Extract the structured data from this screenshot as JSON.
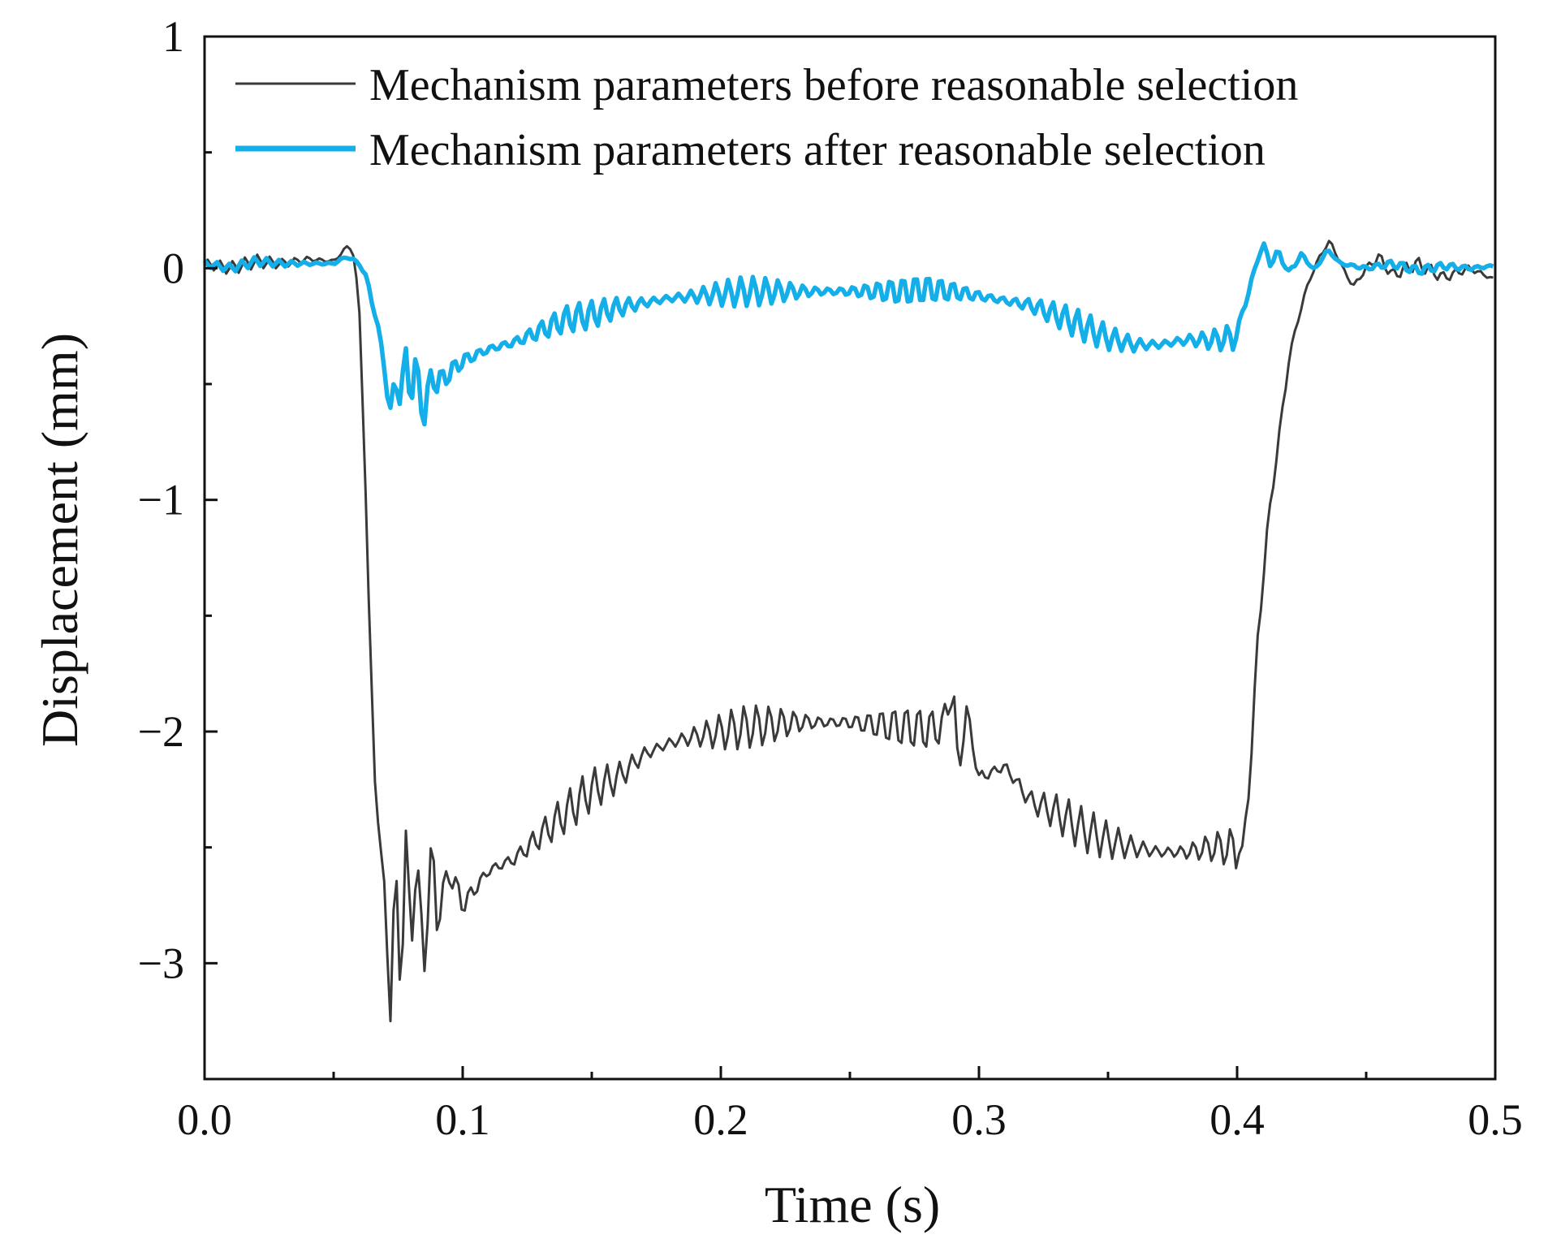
{
  "chart_data": {
    "type": "line",
    "title": "",
    "xlabel": "Time (s)",
    "ylabel": "Displacement (mm)",
    "xlim": [
      0.0,
      0.5
    ],
    "ylim": [
      -3.5,
      1.0
    ],
    "x_ticks": [
      0.0,
      0.1,
      0.2,
      0.3,
      0.4,
      0.5
    ],
    "x_tick_labels": [
      "0.0",
      "0.1",
      "0.2",
      "0.3",
      "0.4",
      "0.5"
    ],
    "y_ticks": [
      1,
      0,
      -1,
      -2,
      -3
    ],
    "y_tick_labels": [
      "1",
      "0",
      "−1",
      "−2",
      "−3"
    ],
    "legend_position": "top-right",
    "grid": false,
    "series": [
      {
        "name": "Mechanism parameters before reasonable selection",
        "color": "#3a3a3a",
        "points": [
          [
            0.0,
            0.02
          ],
          [
            0.01,
            0.0
          ],
          [
            0.02,
            0.03
          ],
          [
            0.03,
            0.02
          ],
          [
            0.04,
            0.04
          ],
          [
            0.05,
            0.03
          ],
          [
            0.056,
            0.1
          ],
          [
            0.058,
            0.05
          ],
          [
            0.06,
            -0.2
          ],
          [
            0.062,
            -0.8
          ],
          [
            0.064,
            -1.6
          ],
          [
            0.066,
            -2.2
          ],
          [
            0.068,
            -2.5
          ],
          [
            0.07,
            -2.7
          ],
          [
            0.072,
            -3.2
          ],
          [
            0.074,
            -2.6
          ],
          [
            0.076,
            -3.1
          ],
          [
            0.078,
            -2.5
          ],
          [
            0.08,
            -2.9
          ],
          [
            0.082,
            -2.55
          ],
          [
            0.085,
            -3.0
          ],
          [
            0.088,
            -2.5
          ],
          [
            0.09,
            -2.8
          ],
          [
            0.095,
            -2.6
          ],
          [
            0.1,
            -2.75
          ],
          [
            0.11,
            -2.6
          ],
          [
            0.12,
            -2.55
          ],
          [
            0.13,
            -2.45
          ],
          [
            0.14,
            -2.35
          ],
          [
            0.15,
            -2.25
          ],
          [
            0.16,
            -2.2
          ],
          [
            0.17,
            -2.1
          ],
          [
            0.18,
            -2.05
          ],
          [
            0.19,
            -2.02
          ],
          [
            0.2,
            -2.0
          ],
          [
            0.21,
            -1.98
          ],
          [
            0.22,
            -1.97
          ],
          [
            0.23,
            -1.96
          ],
          [
            0.24,
            -1.96
          ],
          [
            0.25,
            -1.96
          ],
          [
            0.26,
            -1.97
          ],
          [
            0.27,
            -1.98
          ],
          [
            0.28,
            -1.99
          ],
          [
            0.286,
            -1.98
          ],
          [
            0.29,
            -1.8
          ],
          [
            0.292,
            -2.2
          ],
          [
            0.295,
            -1.9
          ],
          [
            0.3,
            -2.2
          ],
          [
            0.31,
            -2.15
          ],
          [
            0.32,
            -2.3
          ],
          [
            0.33,
            -2.35
          ],
          [
            0.34,
            -2.42
          ],
          [
            0.35,
            -2.47
          ],
          [
            0.36,
            -2.5
          ],
          [
            0.37,
            -2.52
          ],
          [
            0.38,
            -2.52
          ],
          [
            0.39,
            -2.5
          ],
          [
            0.398,
            -2.5
          ],
          [
            0.402,
            -2.52
          ],
          [
            0.405,
            -2.2
          ],
          [
            0.408,
            -1.6
          ],
          [
            0.412,
            -1.1
          ],
          [
            0.416,
            -0.75
          ],
          [
            0.42,
            -0.4
          ],
          [
            0.424,
            -0.2
          ],
          [
            0.428,
            -0.05
          ],
          [
            0.432,
            0.05
          ],
          [
            0.436,
            0.12
          ],
          [
            0.44,
            0.02
          ],
          [
            0.445,
            -0.08
          ],
          [
            0.45,
            0.0
          ],
          [
            0.455,
            0.05
          ],
          [
            0.46,
            -0.03
          ],
          [
            0.47,
            0.02
          ],
          [
            0.48,
            -0.04
          ],
          [
            0.49,
            0.0
          ],
          [
            0.5,
            -0.05
          ]
        ]
      },
      {
        "name": "Mechanism parameters after reasonable selection",
        "color": "#14aee8",
        "points": [
          [
            0.0,
            0.02
          ],
          [
            0.01,
            0.0
          ],
          [
            0.02,
            0.03
          ],
          [
            0.03,
            0.02
          ],
          [
            0.04,
            0.02
          ],
          [
            0.05,
            0.02
          ],
          [
            0.055,
            0.05
          ],
          [
            0.06,
            0.02
          ],
          [
            0.063,
            -0.05
          ],
          [
            0.066,
            -0.2
          ],
          [
            0.068,
            -0.3
          ],
          [
            0.07,
            -0.45
          ],
          [
            0.072,
            -0.65
          ],
          [
            0.074,
            -0.45
          ],
          [
            0.076,
            -0.58
          ],
          [
            0.078,
            -0.38
          ],
          [
            0.08,
            -0.55
          ],
          [
            0.082,
            -0.42
          ],
          [
            0.085,
            -0.65
          ],
          [
            0.088,
            -0.45
          ],
          [
            0.09,
            -0.5
          ],
          [
            0.095,
            -0.45
          ],
          [
            0.1,
            -0.4
          ],
          [
            0.11,
            -0.35
          ],
          [
            0.12,
            -0.32
          ],
          [
            0.13,
            -0.27
          ],
          [
            0.14,
            -0.22
          ],
          [
            0.15,
            -0.2
          ],
          [
            0.16,
            -0.17
          ],
          [
            0.17,
            -0.15
          ],
          [
            0.18,
            -0.13
          ],
          [
            0.19,
            -0.12
          ],
          [
            0.2,
            -0.11
          ],
          [
            0.21,
            -0.1
          ],
          [
            0.22,
            -0.1
          ],
          [
            0.23,
            -0.1
          ],
          [
            0.24,
            -0.1
          ],
          [
            0.25,
            -0.1
          ],
          [
            0.26,
            -0.1
          ],
          [
            0.27,
            -0.1
          ],
          [
            0.28,
            -0.09
          ],
          [
            0.29,
            -0.1
          ],
          [
            0.3,
            -0.12
          ],
          [
            0.31,
            -0.14
          ],
          [
            0.32,
            -0.16
          ],
          [
            0.33,
            -0.2
          ],
          [
            0.34,
            -0.25
          ],
          [
            0.35,
            -0.3
          ],
          [
            0.36,
            -0.33
          ],
          [
            0.37,
            -0.33
          ],
          [
            0.38,
            -0.31
          ],
          [
            0.39,
            -0.31
          ],
          [
            0.398,
            -0.3
          ],
          [
            0.4,
            -0.28
          ],
          [
            0.403,
            -0.15
          ],
          [
            0.406,
            -0.05
          ],
          [
            0.408,
            0.05
          ],
          [
            0.41,
            0.1
          ],
          [
            0.413,
            0.02
          ],
          [
            0.416,
            0.07
          ],
          [
            0.42,
            -0.02
          ],
          [
            0.425,
            0.06
          ],
          [
            0.43,
            -0.01
          ],
          [
            0.435,
            0.08
          ],
          [
            0.44,
            0.02
          ],
          [
            0.45,
            0.0
          ],
          [
            0.46,
            0.02
          ],
          [
            0.47,
            -0.01
          ],
          [
            0.48,
            0.01
          ],
          [
            0.49,
            0.0
          ],
          [
            0.5,
            0.01
          ]
        ]
      }
    ]
  }
}
